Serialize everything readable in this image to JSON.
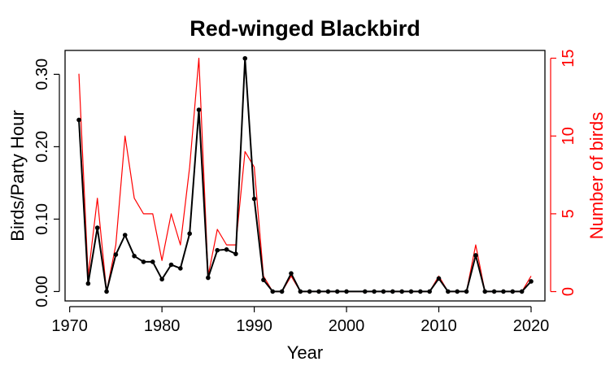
{
  "chart_data": {
    "type": "line",
    "title": "Red-winged Blackbird",
    "xlabel": "Year",
    "ylabel": "Birds/Party Hour",
    "y2label": "Number of birds",
    "xlim": [
      1969.5,
      2021.5
    ],
    "ylim": [
      -0.013,
      0.333
    ],
    "y2lim": [
      -0.6,
      15.5
    ],
    "x_ticks": [
      1970,
      1980,
      1990,
      2000,
      2010,
      2020
    ],
    "y_ticks": [
      "0.00",
      "0.10",
      "0.20",
      "0.30"
    ],
    "y_tick_values": [
      0.0,
      0.1,
      0.2,
      0.3
    ],
    "y2_ticks": [
      0,
      5,
      10,
      15
    ],
    "colors": {
      "primary": "#000000",
      "secondary": "#ff0000"
    },
    "series": [
      {
        "name": "Birds/Party Hour",
        "axis": "left",
        "markers": true,
        "x": [
          1971,
          1972,
          1973,
          1974,
          1975,
          1976,
          1977,
          1978,
          1979,
          1980,
          1981,
          1982,
          1983,
          1984,
          1985,
          1986,
          1987,
          1988,
          1989,
          1990,
          1991,
          1992,
          1993,
          1994,
          1995,
          1996,
          1997,
          1998,
          1999,
          2000,
          2002,
          2003,
          2004,
          2005,
          2006,
          2007,
          2008,
          2009,
          2010,
          2011,
          2012,
          2013,
          2014,
          2015,
          2016,
          2017,
          2018,
          2019,
          2020
        ],
        "values": [
          0.237,
          0.011,
          0.088,
          0.0,
          0.051,
          0.078,
          0.049,
          0.041,
          0.041,
          0.017,
          0.037,
          0.032,
          0.08,
          0.251,
          0.019,
          0.057,
          0.058,
          0.052,
          0.322,
          0.128,
          0.016,
          0.0,
          0.0,
          0.025,
          0.0,
          0.0,
          0.0,
          0.0,
          0.0,
          0.0,
          0.0,
          0.0,
          0.0,
          0.0,
          0.0,
          0.0,
          0.0,
          0.0,
          0.018,
          0.0,
          0.0,
          0.0,
          0.05,
          0.0,
          0.0,
          0.0,
          0.0,
          0.0,
          0.014
        ]
      },
      {
        "name": "Number of birds",
        "axis": "right",
        "markers": false,
        "x": [
          1971,
          1972,
          1973,
          1974,
          1975,
          1976,
          1977,
          1978,
          1979,
          1980,
          1981,
          1982,
          1983,
          1984,
          1985,
          1986,
          1987,
          1988,
          1989,
          1990,
          1991,
          1992,
          1993,
          1994,
          1995,
          1996,
          1997,
          1998,
          1999,
          2000,
          2002,
          2003,
          2004,
          2005,
          2006,
          2007,
          2008,
          2009,
          2010,
          2011,
          2012,
          2013,
          2014,
          2015,
          2016,
          2017,
          2018,
          2019,
          2020
        ],
        "values": [
          14,
          1,
          6,
          0,
          3,
          10,
          6,
          5,
          5,
          2,
          5,
          3,
          8,
          15,
          1,
          4,
          3,
          3,
          9,
          8,
          1,
          0,
          0,
          1,
          0,
          0,
          0,
          0,
          0,
          0,
          0,
          0,
          0,
          0,
          0,
          0,
          0,
          0,
          1,
          0,
          0,
          0,
          3,
          0,
          0,
          0,
          0,
          0,
          1
        ]
      }
    ]
  }
}
